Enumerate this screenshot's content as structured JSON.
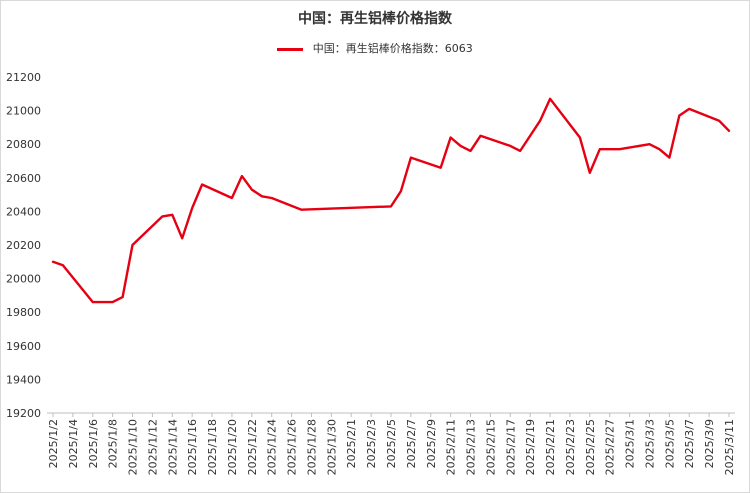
{
  "chart_data": {
    "type": "line",
    "title": "中国：再生铝棒价格指数",
    "xlabel": "",
    "ylabel": "",
    "ylim": [
      19200,
      21200
    ],
    "yticks": [
      19200,
      19400,
      19600,
      19800,
      20000,
      20200,
      20400,
      20600,
      20800,
      21000,
      21200
    ],
    "grid": false,
    "legend_position": "top-center",
    "x_tick_labels": [
      "2025/1/2",
      "2025/1/4",
      "2025/1/6",
      "2025/1/8",
      "2025/1/10",
      "2025/1/12",
      "2025/1/14",
      "2025/1/16",
      "2025/1/18",
      "2025/1/20",
      "2025/1/22",
      "2025/1/24",
      "2025/1/26",
      "2025/1/28",
      "2025/1/30",
      "2025/2/1",
      "2025/2/3",
      "2025/2/5",
      "2025/2/7",
      "2025/2/9",
      "2025/2/11",
      "2025/2/13",
      "2025/2/15",
      "2025/2/17",
      "2025/2/19",
      "2025/2/21",
      "2025/2/23",
      "2025/2/25",
      "2025/2/27",
      "2025/3/1",
      "2025/3/3",
      "2025/3/5",
      "2025/3/7",
      "2025/3/9",
      "2025/3/11"
    ],
    "series": [
      {
        "name": "中国：再生铝棒价格指数：6063",
        "color": "#e60012",
        "x": [
          "2025/1/2",
          "2025/1/3",
          "2025/1/6",
          "2025/1/7",
          "2025/1/8",
          "2025/1/9",
          "2025/1/10",
          "2025/1/13",
          "2025/1/14",
          "2025/1/15",
          "2025/1/16",
          "2025/1/17",
          "2025/1/20",
          "2025/1/21",
          "2025/1/22",
          "2025/1/23",
          "2025/1/24",
          "2025/1/27",
          "2025/2/5",
          "2025/2/6",
          "2025/2/7",
          "2025/2/10",
          "2025/2/11",
          "2025/2/12",
          "2025/2/13",
          "2025/2/14",
          "2025/2/17",
          "2025/2/18",
          "2025/2/20",
          "2025/2/21",
          "2025/2/24",
          "2025/2/25",
          "2025/2/26",
          "2025/2/27",
          "2025/2/28",
          "2025/3/3",
          "2025/3/4",
          "2025/3/5",
          "2025/3/6",
          "2025/3/7",
          "2025/3/10",
          "2025/3/11"
        ],
        "values": [
          20100,
          20080,
          19860,
          19860,
          19860,
          19890,
          20200,
          20370,
          20380,
          20240,
          20420,
          20560,
          20480,
          20610,
          20530,
          20490,
          20480,
          20410,
          20430,
          20520,
          20720,
          20660,
          20840,
          20790,
          20760,
          20850,
          20790,
          20760,
          20940,
          21070,
          20840,
          20630,
          20770,
          20770,
          20770,
          20800,
          20770,
          20720,
          20970,
          21010,
          20940,
          20880
        ]
      }
    ]
  }
}
